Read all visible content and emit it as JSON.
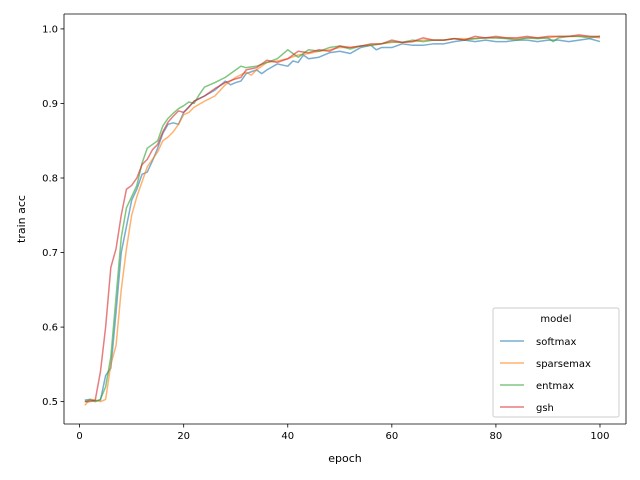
{
  "chart_data": {
    "type": "line",
    "xlabel": "epoch",
    "ylabel": "train acc",
    "xlim": [
      -3,
      105
    ],
    "ylim": [
      0.47,
      1.02
    ],
    "xticks": [
      0,
      20,
      40,
      60,
      80,
      100
    ],
    "yticks": [
      0.5,
      0.6,
      0.7,
      0.8,
      0.9,
      1.0
    ],
    "xtick_labels": [
      "0",
      "20",
      "40",
      "60",
      "80",
      "100"
    ],
    "ytick_labels": [
      "0.5",
      "0.6",
      "0.7",
      "0.8",
      "0.9",
      "1.0"
    ],
    "grid": false,
    "legend": {
      "title": "model",
      "position": "lower-right"
    },
    "series": [
      {
        "name": "softmax",
        "color": "#1f77b4",
        "points": [
          [
            1,
            0.502
          ],
          [
            2,
            0.503
          ],
          [
            3,
            0.501
          ],
          [
            4,
            0.502
          ],
          [
            5,
            0.535
          ],
          [
            6,
            0.545
          ],
          [
            7,
            0.62
          ],
          [
            8,
            0.7
          ],
          [
            9,
            0.735
          ],
          [
            10,
            0.77
          ],
          [
            11,
            0.785
          ],
          [
            12,
            0.805
          ],
          [
            13,
            0.808
          ],
          [
            14,
            0.823
          ],
          [
            15,
            0.84
          ],
          [
            16,
            0.86
          ],
          [
            17,
            0.872
          ],
          [
            18,
            0.874
          ],
          [
            19,
            0.872
          ],
          [
            20,
            0.888
          ],
          [
            22,
            0.903
          ],
          [
            24,
            0.91
          ],
          [
            26,
            0.918
          ],
          [
            28,
            0.93
          ],
          [
            29,
            0.925
          ],
          [
            30,
            0.928
          ],
          [
            31,
            0.93
          ],
          [
            32,
            0.94
          ],
          [
            34,
            0.945
          ],
          [
            35,
            0.94
          ],
          [
            36,
            0.945
          ],
          [
            38,
            0.953
          ],
          [
            40,
            0.95
          ],
          [
            41,
            0.957
          ],
          [
            42,
            0.955
          ],
          [
            43,
            0.965
          ],
          [
            44,
            0.96
          ],
          [
            46,
            0.962
          ],
          [
            48,
            0.968
          ],
          [
            50,
            0.97
          ],
          [
            52,
            0.967
          ],
          [
            54,
            0.975
          ],
          [
            56,
            0.978
          ],
          [
            57,
            0.972
          ],
          [
            58,
            0.975
          ],
          [
            60,
            0.975
          ],
          [
            62,
            0.98
          ],
          [
            64,
            0.978
          ],
          [
            66,
            0.978
          ],
          [
            68,
            0.98
          ],
          [
            70,
            0.98
          ],
          [
            72,
            0.983
          ],
          [
            74,
            0.985
          ],
          [
            76,
            0.983
          ],
          [
            78,
            0.985
          ],
          [
            80,
            0.983
          ],
          [
            82,
            0.983
          ],
          [
            84,
            0.985
          ],
          [
            86,
            0.985
          ],
          [
            88,
            0.983
          ],
          [
            90,
            0.985
          ],
          [
            92,
            0.985
          ],
          [
            94,
            0.983
          ],
          [
            96,
            0.985
          ],
          [
            98,
            0.987
          ],
          [
            100,
            0.983
          ]
        ]
      },
      {
        "name": "sparsemax",
        "color": "#ff7f0e",
        "points": [
          [
            1,
            0.495
          ],
          [
            2,
            0.503
          ],
          [
            3,
            0.502
          ],
          [
            4,
            0.5
          ],
          [
            5,
            0.503
          ],
          [
            6,
            0.55
          ],
          [
            7,
            0.575
          ],
          [
            8,
            0.65
          ],
          [
            9,
            0.705
          ],
          [
            10,
            0.75
          ],
          [
            11,
            0.775
          ],
          [
            12,
            0.795
          ],
          [
            13,
            0.815
          ],
          [
            14,
            0.825
          ],
          [
            15,
            0.835
          ],
          [
            16,
            0.85
          ],
          [
            17,
            0.855
          ],
          [
            18,
            0.862
          ],
          [
            19,
            0.872
          ],
          [
            20,
            0.885
          ],
          [
            21,
            0.888
          ],
          [
            22,
            0.895
          ],
          [
            24,
            0.903
          ],
          [
            26,
            0.91
          ],
          [
            28,
            0.925
          ],
          [
            30,
            0.935
          ],
          [
            32,
            0.942
          ],
          [
            33,
            0.938
          ],
          [
            34,
            0.945
          ],
          [
            36,
            0.955
          ],
          [
            38,
            0.957
          ],
          [
            40,
            0.96
          ],
          [
            42,
            0.965
          ],
          [
            44,
            0.967
          ],
          [
            46,
            0.97
          ],
          [
            48,
            0.972
          ],
          [
            50,
            0.975
          ],
          [
            52,
            0.975
          ],
          [
            54,
            0.977
          ],
          [
            56,
            0.978
          ],
          [
            58,
            0.98
          ],
          [
            60,
            0.982
          ],
          [
            62,
            0.982
          ],
          [
            64,
            0.983
          ],
          [
            66,
            0.985
          ],
          [
            68,
            0.985
          ],
          [
            70,
            0.985
          ],
          [
            72,
            0.987
          ],
          [
            74,
            0.987
          ],
          [
            76,
            0.987
          ],
          [
            78,
            0.988
          ],
          [
            80,
            0.988
          ],
          [
            82,
            0.988
          ],
          [
            84,
            0.987
          ],
          [
            86,
            0.988
          ],
          [
            88,
            0.988
          ],
          [
            90,
            0.988
          ],
          [
            92,
            0.99
          ],
          [
            94,
            0.99
          ],
          [
            96,
            0.99
          ],
          [
            98,
            0.99
          ],
          [
            100,
            0.988
          ]
        ]
      },
      {
        "name": "entmax",
        "color": "#2ca02c",
        "points": [
          [
            1,
            0.5
          ],
          [
            2,
            0.502
          ],
          [
            3,
            0.5
          ],
          [
            4,
            0.503
          ],
          [
            5,
            0.52
          ],
          [
            6,
            0.56
          ],
          [
            7,
            0.64
          ],
          [
            8,
            0.72
          ],
          [
            9,
            0.76
          ],
          [
            10,
            0.775
          ],
          [
            11,
            0.79
          ],
          [
            12,
            0.82
          ],
          [
            13,
            0.84
          ],
          [
            14,
            0.845
          ],
          [
            15,
            0.85
          ],
          [
            16,
            0.87
          ],
          [
            17,
            0.88
          ],
          [
            18,
            0.887
          ],
          [
            19,
            0.893
          ],
          [
            20,
            0.897
          ],
          [
            21,
            0.902
          ],
          [
            22,
            0.9
          ],
          [
            23,
            0.912
          ],
          [
            24,
            0.922
          ],
          [
            26,
            0.928
          ],
          [
            28,
            0.935
          ],
          [
            30,
            0.945
          ],
          [
            31,
            0.95
          ],
          [
            32,
            0.948
          ],
          [
            34,
            0.95
          ],
          [
            36,
            0.955
          ],
          [
            38,
            0.96
          ],
          [
            40,
            0.972
          ],
          [
            41,
            0.967
          ],
          [
            42,
            0.962
          ],
          [
            44,
            0.972
          ],
          [
            46,
            0.97
          ],
          [
            48,
            0.975
          ],
          [
            50,
            0.977
          ],
          [
            52,
            0.973
          ],
          [
            54,
            0.977
          ],
          [
            56,
            0.978
          ],
          [
            58,
            0.98
          ],
          [
            60,
            0.983
          ],
          [
            62,
            0.982
          ],
          [
            64,
            0.985
          ],
          [
            66,
            0.983
          ],
          [
            68,
            0.985
          ],
          [
            70,
            0.985
          ],
          [
            72,
            0.987
          ],
          [
            74,
            0.985
          ],
          [
            76,
            0.987
          ],
          [
            78,
            0.988
          ],
          [
            80,
            0.988
          ],
          [
            82,
            0.987
          ],
          [
            84,
            0.985
          ],
          [
            86,
            0.988
          ],
          [
            88,
            0.987
          ],
          [
            90,
            0.988
          ],
          [
            91,
            0.983
          ],
          [
            92,
            0.988
          ],
          [
            94,
            0.99
          ],
          [
            96,
            0.99
          ],
          [
            98,
            0.988
          ],
          [
            100,
            0.99
          ]
        ]
      },
      {
        "name": "gsh",
        "color": "#d62728",
        "points": [
          [
            1,
            0.5
          ],
          [
            2,
            0.5
          ],
          [
            3,
            0.502
          ],
          [
            4,
            0.54
          ],
          [
            5,
            0.6
          ],
          [
            6,
            0.68
          ],
          [
            7,
            0.705
          ],
          [
            8,
            0.75
          ],
          [
            9,
            0.785
          ],
          [
            10,
            0.79
          ],
          [
            11,
            0.8
          ],
          [
            12,
            0.818
          ],
          [
            13,
            0.825
          ],
          [
            14,
            0.838
          ],
          [
            15,
            0.845
          ],
          [
            16,
            0.862
          ],
          [
            17,
            0.875
          ],
          [
            18,
            0.883
          ],
          [
            19,
            0.89
          ],
          [
            20,
            0.888
          ],
          [
            21,
            0.895
          ],
          [
            22,
            0.903
          ],
          [
            24,
            0.91
          ],
          [
            26,
            0.92
          ],
          [
            28,
            0.928
          ],
          [
            30,
            0.933
          ],
          [
            31,
            0.935
          ],
          [
            32,
            0.945
          ],
          [
            34,
            0.948
          ],
          [
            36,
            0.958
          ],
          [
            38,
            0.955
          ],
          [
            40,
            0.96
          ],
          [
            42,
            0.97
          ],
          [
            44,
            0.968
          ],
          [
            46,
            0.972
          ],
          [
            48,
            0.97
          ],
          [
            50,
            0.977
          ],
          [
            52,
            0.975
          ],
          [
            54,
            0.977
          ],
          [
            56,
            0.98
          ],
          [
            58,
            0.98
          ],
          [
            60,
            0.985
          ],
          [
            62,
            0.982
          ],
          [
            64,
            0.983
          ],
          [
            66,
            0.988
          ],
          [
            68,
            0.985
          ],
          [
            70,
            0.985
          ],
          [
            72,
            0.987
          ],
          [
            74,
            0.985
          ],
          [
            76,
            0.99
          ],
          [
            78,
            0.988
          ],
          [
            80,
            0.99
          ],
          [
            82,
            0.988
          ],
          [
            84,
            0.988
          ],
          [
            86,
            0.99
          ],
          [
            88,
            0.988
          ],
          [
            90,
            0.99
          ],
          [
            92,
            0.99
          ],
          [
            94,
            0.99
          ],
          [
            96,
            0.992
          ],
          [
            98,
            0.99
          ],
          [
            100,
            0.99
          ]
        ]
      }
    ]
  }
}
